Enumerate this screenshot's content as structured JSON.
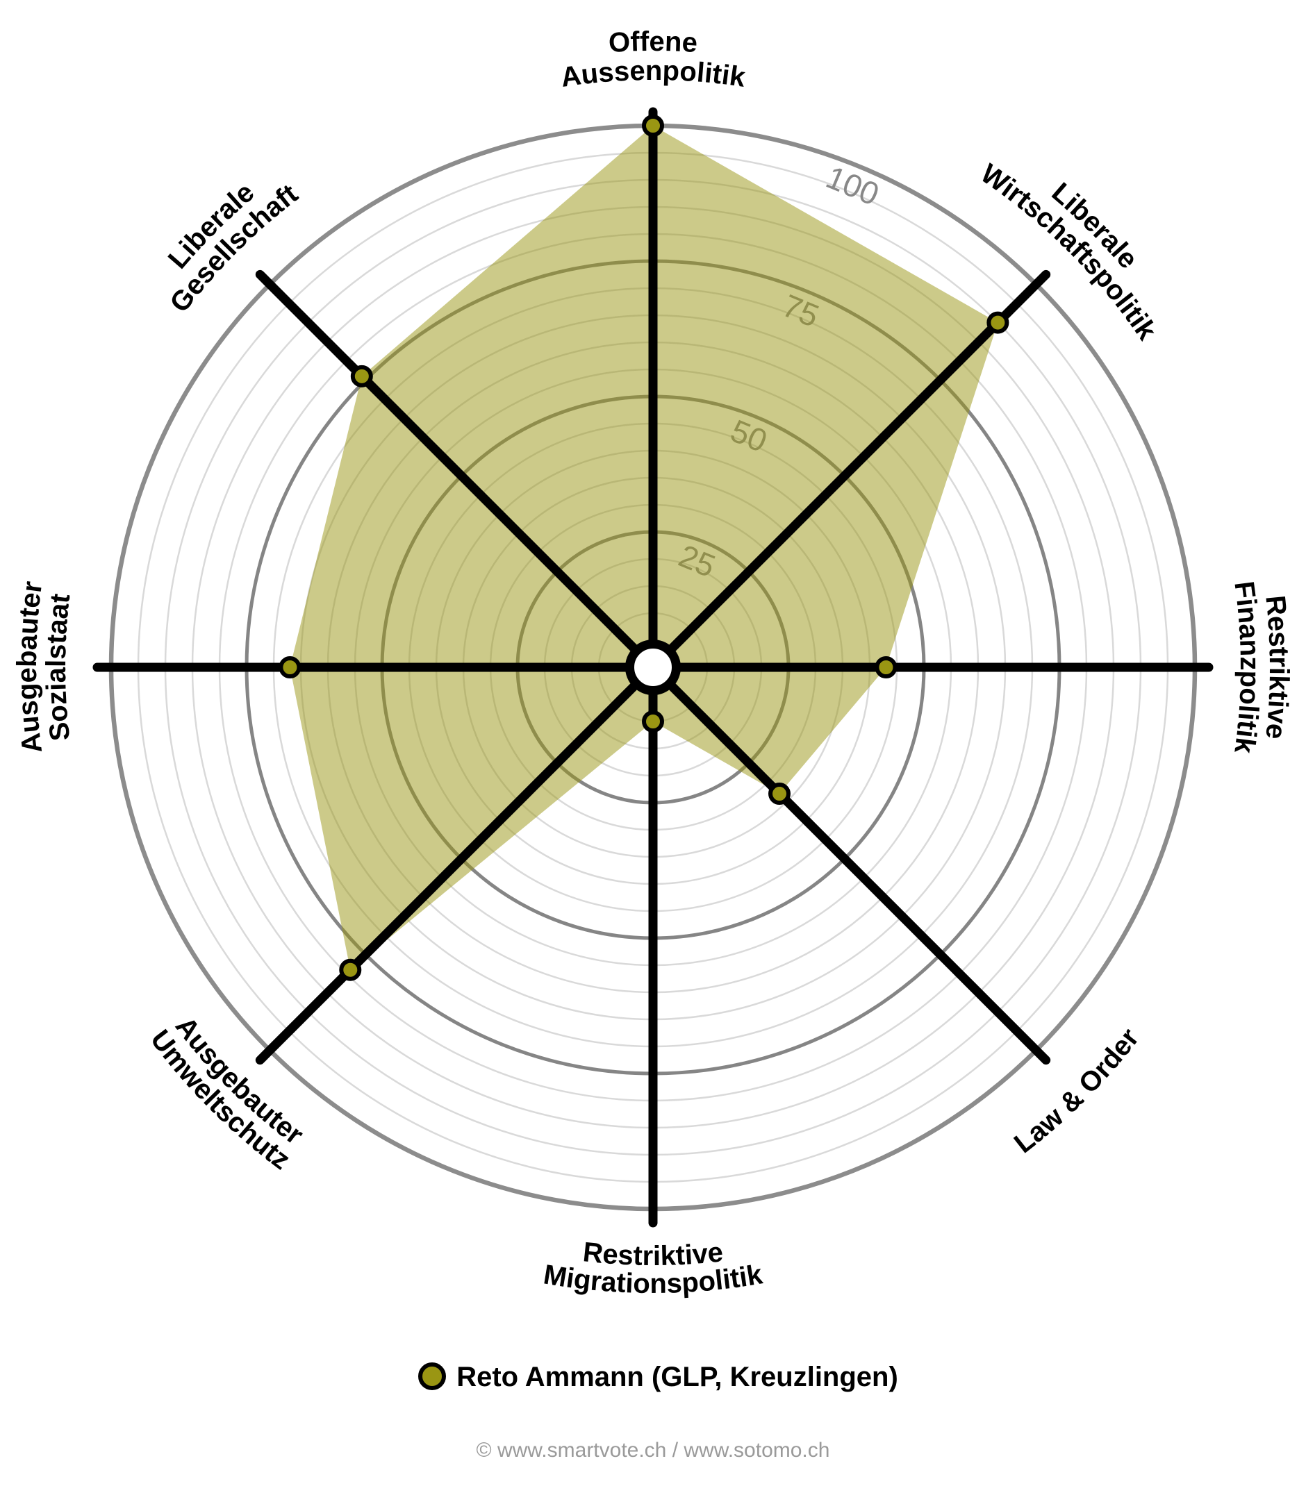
{
  "chart_data": {
    "type": "radar",
    "variant": "smartvote-smartspider",
    "scale_max": 100,
    "ring_step": 5,
    "major_rings": [
      25,
      50,
      75,
      100
    ],
    "ring_labels": [
      "25",
      "50",
      "75",
      "100"
    ],
    "axes": [
      {
        "key": "offene-aussenpolitik",
        "label_lines": [
          "Offene",
          "Aussenpolitik"
        ],
        "angle_deg": 0,
        "value": 100
      },
      {
        "key": "liberale-wirtschaftspolitik",
        "label_lines": [
          "Liberale",
          "Wirtschaftspolitik"
        ],
        "angle_deg": 45,
        "value": 90
      },
      {
        "key": "restriktive-finanzpolitik",
        "label_lines": [
          "Restriktive",
          "Finanzpolitik"
        ],
        "angle_deg": 90,
        "value": 43
      },
      {
        "key": "law-and-order",
        "label_lines": [
          "Law & Order"
        ],
        "angle_deg": 135,
        "value": 33
      },
      {
        "key": "restriktive-migrationspolitik",
        "label_lines": [
          "Restriktive",
          "Migrationspolitik"
        ],
        "angle_deg": 180,
        "value": 10
      },
      {
        "key": "ausgebauter-umweltschutz",
        "label_lines": [
          "Ausgebauter",
          "Umweltschutz"
        ],
        "angle_deg": 225,
        "value": 79
      },
      {
        "key": "ausgebauter-sozialstaat",
        "label_lines": [
          "Ausgebauter",
          "Sozialstaat"
        ],
        "angle_deg": 270,
        "value": 67
      },
      {
        "key": "liberale-gesellschaft",
        "label_lines": [
          "Liberale",
          "Gesellschaft"
        ],
        "angle_deg": 315,
        "value": 76
      }
    ],
    "series": [
      {
        "name": "Reto Ammann (GLP, Kreuzlingen)",
        "values": [
          100,
          90,
          43,
          33,
          10,
          79,
          67,
          76
        ]
      }
    ],
    "colors": {
      "candidate": "#9a9613",
      "candidate_fill_opacity": 0.5,
      "grid_minor": "#d9d9d9",
      "grid_major": "#858585",
      "grid_outer": "#8c8c8c",
      "ring_label": "#888888",
      "axis_line": "#000000",
      "dot_stroke": "#000000",
      "hub_fill": "#ffffff",
      "footer_text": "#9a9a9a"
    }
  },
  "legend": {
    "candidate_label": "Reto Ammann (GLP, Kreuzlingen)"
  },
  "footer": {
    "credit": "© www.smartvote.ch / www.sotomo.ch"
  }
}
